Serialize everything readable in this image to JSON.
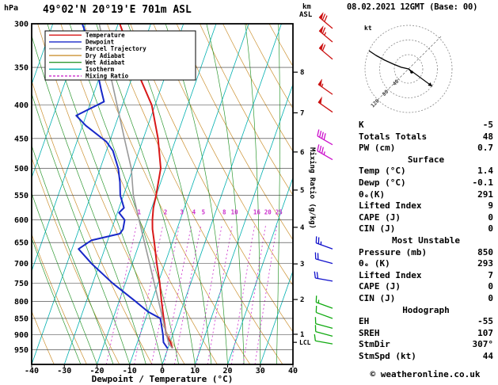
{
  "header": {
    "date_title": "08.02.2021 12GMT (Base: 00)"
  },
  "chart_data": {
    "type": "line",
    "title": "49°02'N 20°19'E 701m ASL",
    "xlabel": "Dewpoint / Temperature (°C)",
    "ylabel_left": "hPa",
    "km_unit": "km",
    "asl_unit": "ASL",
    "ylabel_right": "Mixing Ratio (g/kg)",
    "axis_ranges": {
      "pressure": [
        300,
        1000
      ],
      "temp": [
        -40,
        40
      ]
    },
    "x_ticks": [
      -40,
      -30,
      -20,
      -10,
      0,
      10,
      20,
      30,
      40
    ],
    "pressure_ticks": [
      300,
      350,
      400,
      450,
      500,
      550,
      600,
      650,
      700,
      750,
      800,
      850,
      900,
      950
    ],
    "km_ticks": [
      {
        "label": "8",
        "hpa": 356
      },
      {
        "label": "7",
        "hpa": 411
      },
      {
        "label": "6",
        "hpa": 472
      },
      {
        "label": "5",
        "hpa": 540
      },
      {
        "label": "4",
        "hpa": 616
      },
      {
        "label": "3",
        "hpa": 701
      },
      {
        "label": "2",
        "hpa": 795
      },
      {
        "label": "1",
        "hpa": 899
      }
    ],
    "lcl": {
      "label": "LCL",
      "hpa": 925
    },
    "mixing_ratio_values": [
      1,
      2,
      3,
      4,
      5,
      8,
      10,
      16,
      20,
      25
    ],
    "background": {
      "isotherm_color": "#00b0b0",
      "dry_adiabat_color": "#cc9233",
      "wet_adiabat_color": "#2f9932",
      "mixing_ratio_color": "#cc2fcc",
      "isobar_color": "#333333"
    },
    "legend": [
      {
        "label": "Temperature",
        "color": "#d81818",
        "dash": ""
      },
      {
        "label": "Dewpoint",
        "color": "#1828c8",
        "dash": ""
      },
      {
        "label": "Parcel Trajectory",
        "color": "#999999",
        "dash": ""
      },
      {
        "label": "Dry Adiabat",
        "color": "#cc9233",
        "dash": ""
      },
      {
        "label": "Wet Adiabat",
        "color": "#2f9932",
        "dash": ""
      },
      {
        "label": "Isotherm",
        "color": "#00b0b0",
        "dash": ""
      },
      {
        "label": "Mixing Ratio",
        "color": "#cc2fcc",
        "dash": "3,2"
      }
    ],
    "series": [
      {
        "name": "Temperature",
        "color": "#d81818",
        "width": 2,
        "points": [
          [
            945,
            1.4
          ],
          [
            925,
            0.2
          ],
          [
            900,
            -2.0
          ],
          [
            850,
            -4.5
          ],
          [
            800,
            -7.0
          ],
          [
            750,
            -9.5
          ],
          [
            700,
            -12.5
          ],
          [
            650,
            -15.5
          ],
          [
            620,
            -17.5
          ],
          [
            600,
            -18.5
          ],
          [
            575,
            -19.5
          ],
          [
            550,
            -20.0
          ],
          [
            500,
            -21.5
          ],
          [
            450,
            -25.5
          ],
          [
            400,
            -31.0
          ],
          [
            350,
            -40.0
          ],
          [
            300,
            -49.5
          ]
        ]
      },
      {
        "name": "Dewpoint",
        "color": "#1828c8",
        "width": 2,
        "points": [
          [
            945,
            -0.1
          ],
          [
            925,
            -2.0
          ],
          [
            900,
            -3.0
          ],
          [
            850,
            -5.5
          ],
          [
            830,
            -10.0
          ],
          [
            800,
            -15.0
          ],
          [
            750,
            -24.0
          ],
          [
            700,
            -32.5
          ],
          [
            665,
            -38.0
          ],
          [
            645,
            -35.0
          ],
          [
            630,
            -27.0
          ],
          [
            620,
            -26.5
          ],
          [
            600,
            -27.0
          ],
          [
            585,
            -29.5
          ],
          [
            575,
            -28.5
          ],
          [
            550,
            -31.0
          ],
          [
            525,
            -32.5
          ],
          [
            500,
            -34.5
          ],
          [
            470,
            -38.0
          ],
          [
            455,
            -41.0
          ],
          [
            430,
            -49.0
          ],
          [
            415,
            -53.0
          ],
          [
            395,
            -46.0
          ],
          [
            380,
            -48.0
          ],
          [
            350,
            -52.0
          ],
          [
            325,
            -56.0
          ],
          [
            300,
            -61.0
          ]
        ]
      },
      {
        "name": "Parcel Trajectory",
        "color": "#999999",
        "width": 1.6,
        "points": [
          [
            945,
            1.4
          ],
          [
            928,
            -0.3
          ],
          [
            900,
            -1.9
          ],
          [
            850,
            -4.8
          ],
          [
            800,
            -7.9
          ],
          [
            750,
            -11.2
          ],
          [
            700,
            -14.7
          ],
          [
            650,
            -18.5
          ],
          [
            600,
            -22.6
          ],
          [
            550,
            -27.0
          ],
          [
            500,
            -30.5
          ],
          [
            450,
            -35.8
          ],
          [
            400,
            -41.6
          ],
          [
            350,
            -48.2
          ],
          [
            300,
            -55.8
          ]
        ]
      }
    ],
    "wind_barbs": [
      {
        "hpa": 305,
        "kt": 70,
        "dir": 310,
        "color": "#cc1111"
      },
      {
        "hpa": 320,
        "kt": 65,
        "dir": 310,
        "color": "#cc1111"
      },
      {
        "hpa": 340,
        "kt": 60,
        "dir": 310,
        "color": "#cc1111"
      },
      {
        "hpa": 385,
        "kt": 55,
        "dir": 305,
        "color": "#cc1111"
      },
      {
        "hpa": 410,
        "kt": 50,
        "dir": 305,
        "color": "#cc1111"
      },
      {
        "hpa": 460,
        "kt": 40,
        "dir": 300,
        "color": "#cc11cc"
      },
      {
        "hpa": 485,
        "kt": 35,
        "dir": 300,
        "color": "#cc11cc"
      },
      {
        "hpa": 665,
        "kt": 25,
        "dir": 290,
        "color": "#1111cc"
      },
      {
        "hpa": 700,
        "kt": 20,
        "dir": 285,
        "color": "#1111cc"
      },
      {
        "hpa": 745,
        "kt": 18,
        "dir": 280,
        "color": "#1111cc"
      },
      {
        "hpa": 820,
        "kt": 15,
        "dir": 290,
        "color": "#11aa11"
      },
      {
        "hpa": 850,
        "kt": 12,
        "dir": 290,
        "color": "#11aa11"
      },
      {
        "hpa": 880,
        "kt": 10,
        "dir": 285,
        "color": "#11aa11"
      },
      {
        "hpa": 905,
        "kt": 10,
        "dir": 285,
        "color": "#11aa11"
      },
      {
        "hpa": 930,
        "kt": 8,
        "dir": 280,
        "color": "#11aa11"
      }
    ]
  },
  "hodograph": {
    "unit_label": "kt",
    "rings": [
      {
        "kt": "40",
        "r": 18
      },
      {
        "kt": "80",
        "r": 36.5
      },
      {
        "kt": "120",
        "r": 55
      }
    ],
    "trace": [
      [
        4,
        4
      ],
      [
        0,
        0
      ],
      [
        -9,
        -2
      ],
      [
        -19,
        -6
      ],
      [
        -30,
        -11
      ],
      [
        -41,
        -17
      ],
      [
        -50,
        -23
      ]
    ],
    "storm_vector": [
      30,
      22
    ]
  },
  "stats": {
    "rows": [
      {
        "label": "K",
        "value": "-5"
      },
      {
        "label": "Totals Totals",
        "value": "48"
      },
      {
        "label": "PW (cm)",
        "value": "0.7"
      },
      {
        "header": "Surface"
      },
      {
        "label": "Temp (°C)",
        "value": "1.4"
      },
      {
        "label": "Dewp (°C)",
        "value": "-0.1"
      },
      {
        "label": "θₑ(K)",
        "value": "291"
      },
      {
        "label": "Lifted Index",
        "value": "9"
      },
      {
        "label": "CAPE (J)",
        "value": "0"
      },
      {
        "label": "CIN (J)",
        "value": "0"
      },
      {
        "header": "Most Unstable"
      },
      {
        "label": "Pressure (mb)",
        "value": "850"
      },
      {
        "label": "θₑ (K)",
        "value": "293"
      },
      {
        "label": "Lifted Index",
        "value": "7"
      },
      {
        "label": "CAPE (J)",
        "value": "0"
      },
      {
        "label": "CIN (J)",
        "value": "0"
      },
      {
        "header": "Hodograph"
      },
      {
        "label": "EH",
        "value": "-55"
      },
      {
        "label": "SREH",
        "value": "107"
      },
      {
        "label": "StmDir",
        "value": "307°"
      },
      {
        "label": "StmSpd (kt)",
        "value": "44"
      }
    ]
  },
  "footer": {
    "copyright": "© weatheronline.co.uk"
  }
}
